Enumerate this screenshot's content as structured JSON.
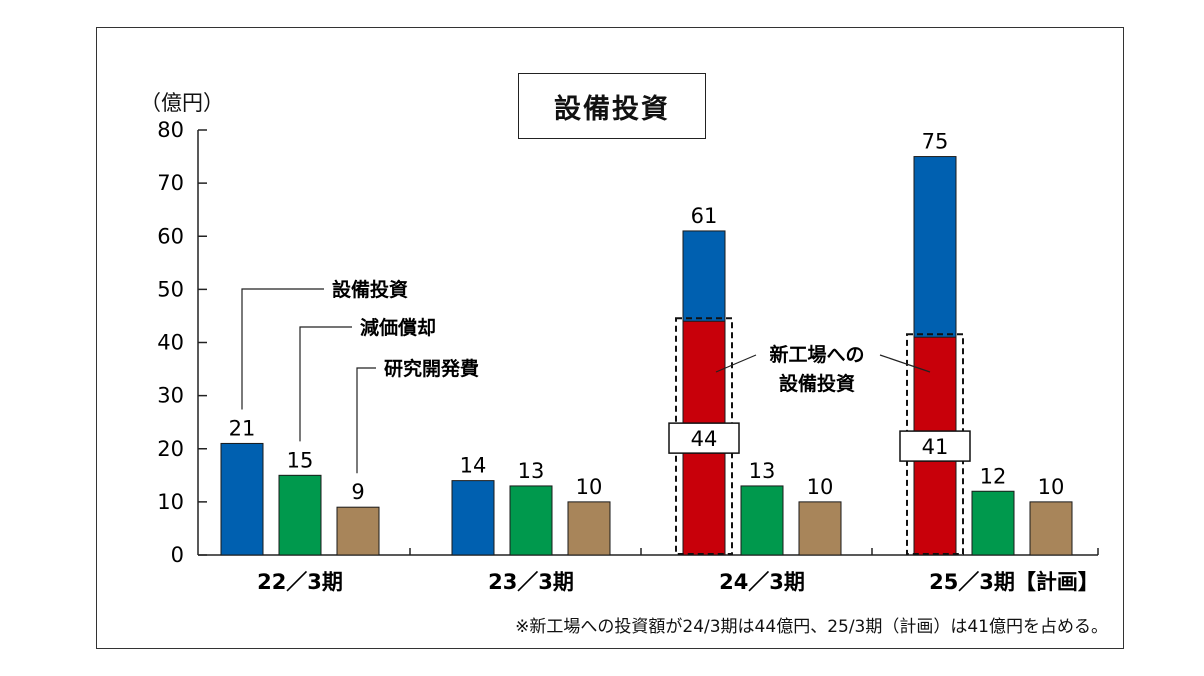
{
  "chart_data": {
    "type": "bar",
    "title": "設備投資",
    "unit": "（億円）",
    "ylim": [
      0,
      80
    ],
    "yticks": [
      0,
      10,
      20,
      30,
      40,
      50,
      60,
      70,
      80
    ],
    "categories": [
      "22／3期",
      "23／3期",
      "24／3期",
      "25／3期【計画】"
    ],
    "series": [
      {
        "name": "設備投資",
        "color": "#0060b0",
        "values": [
          21,
          14,
          61,
          75
        ]
      },
      {
        "name": "減価償却",
        "color": "#00994d",
        "values": [
          15,
          13,
          13,
          12
        ]
      },
      {
        "name": "研究開発費",
        "color": "#a8855a",
        "values": [
          9,
          10,
          10,
          10
        ]
      }
    ],
    "new_factory": {
      "label_line1": "新工場への",
      "label_line2": "設備投資",
      "color": "#c8000a",
      "values": [
        null,
        null,
        44,
        41
      ]
    },
    "value_labels": [
      [
        "21",
        "15",
        "9"
      ],
      [
        "14",
        "13",
        "10"
      ],
      [
        "61",
        "13",
        "10"
      ],
      [
        "75",
        "12",
        "10"
      ]
    ],
    "new_factory_labels": [
      "",
      "",
      "44",
      "41"
    ],
    "footnote": "※新工場への投資額が24/3期は44億円、25/3期（計画）は41億円を占める。"
  }
}
